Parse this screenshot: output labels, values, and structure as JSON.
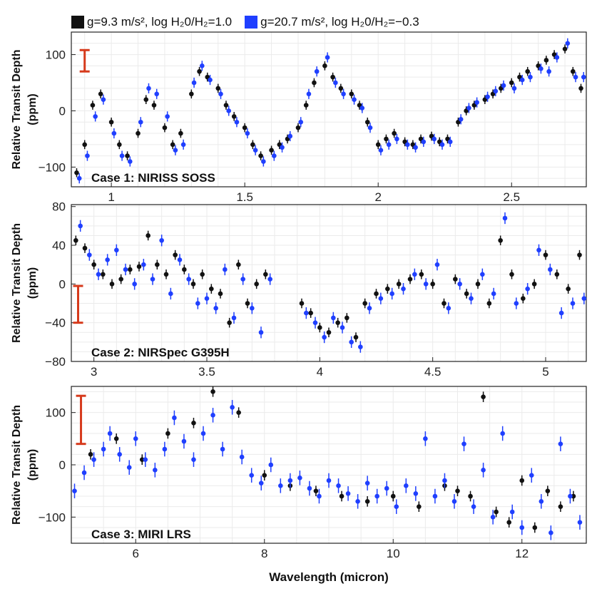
{
  "legend": {
    "items": [
      {
        "label": "g=9.3 m/s², log H₂0/H₂=1.0",
        "color": "#111111"
      },
      {
        "label": "g=20.7 m/s², log H₂0/H₂=−0.3",
        "color": "#1f3fff"
      }
    ]
  },
  "xlabel": "Wavelength (micron)",
  "chart_data": [
    {
      "type": "scatter",
      "title": "Case 1: NIRISS SOSS",
      "ylabel": "Relative Transit Depth (ppm)",
      "xlim": [
        0.85,
        2.78
      ],
      "ylim": [
        -135,
        140
      ],
      "xticks": [
        1,
        1.5,
        2,
        2.5
      ],
      "yticks": [
        -100,
        0,
        100
      ],
      "grid": true,
      "error_bar_reference": {
        "x": 0.9,
        "y_low": 70,
        "y_high": 108
      },
      "series": [
        {
          "name": "g=9.3 m/s², log H₂0/H₂=1.0",
          "color": "#111111",
          "x": [
            0.87,
            0.9,
            0.93,
            0.96,
            1.0,
            1.03,
            1.06,
            1.1,
            1.13,
            1.16,
            1.2,
            1.23,
            1.26,
            1.3,
            1.33,
            1.36,
            1.4,
            1.43,
            1.46,
            1.5,
            1.53,
            1.56,
            1.6,
            1.63,
            1.66,
            1.7,
            1.73,
            1.76,
            1.8,
            1.83,
            1.86,
            1.9,
            1.93,
            1.96,
            2.0,
            2.03,
            2.06,
            2.1,
            2.13,
            2.16,
            2.2,
            2.23,
            2.26,
            2.3,
            2.33,
            2.36,
            2.4,
            2.43,
            2.46,
            2.5,
            2.53,
            2.56,
            2.6,
            2.63,
            2.66,
            2.7,
            2.73,
            2.76
          ],
          "y": [
            -110,
            -60,
            10,
            30,
            -20,
            -60,
            -80,
            -40,
            20,
            10,
            -30,
            -60,
            -40,
            30,
            70,
            60,
            40,
            10,
            -10,
            -30,
            -60,
            -80,
            -70,
            -60,
            -50,
            -30,
            10,
            50,
            80,
            60,
            40,
            30,
            10,
            -20,
            -60,
            -50,
            -40,
            -55,
            -60,
            -50,
            -45,
            -55,
            -50,
            -20,
            0,
            10,
            20,
            30,
            40,
            50,
            60,
            70,
            80,
            90,
            100,
            110,
            70,
            40
          ],
          "error": 8
        },
        {
          "name": "g=20.7 m/s², log H₂0/H₂=−0.3",
          "color": "#1f3fff",
          "x": [
            0.88,
            0.91,
            0.94,
            0.97,
            1.01,
            1.04,
            1.07,
            1.11,
            1.14,
            1.17,
            1.21,
            1.24,
            1.27,
            1.31,
            1.34,
            1.37,
            1.41,
            1.44,
            1.47,
            1.51,
            1.54,
            1.57,
            1.61,
            1.64,
            1.67,
            1.71,
            1.74,
            1.77,
            1.81,
            1.84,
            1.87,
            1.91,
            1.94,
            1.97,
            2.01,
            2.04,
            2.07,
            2.11,
            2.14,
            2.17,
            2.21,
            2.24,
            2.27,
            2.31,
            2.34,
            2.37,
            2.41,
            2.44,
            2.47,
            2.51,
            2.54,
            2.57,
            2.61,
            2.64,
            2.67,
            2.71,
            2.74,
            2.77
          ],
          "y": [
            -120,
            -80,
            -10,
            20,
            -40,
            -80,
            -90,
            -20,
            40,
            30,
            -10,
            -70,
            -60,
            50,
            80,
            55,
            30,
            0,
            -20,
            -40,
            -70,
            -90,
            -80,
            -65,
            -45,
            -20,
            30,
            70,
            95,
            50,
            30,
            20,
            5,
            -30,
            -70,
            -60,
            -50,
            -60,
            -65,
            -55,
            -50,
            -60,
            -55,
            -15,
            5,
            15,
            25,
            35,
            45,
            40,
            55,
            60,
            75,
            70,
            95,
            120,
            60,
            60
          ],
          "error": 9
        }
      ]
    },
    {
      "type": "scatter",
      "title": "Case 2: NIRSpec G395H",
      "ylabel": "Relative Transit Depth (ppm)",
      "xlim": [
        2.9,
        5.18
      ],
      "ylim": [
        -80,
        82
      ],
      "xticks": [
        3,
        3.5,
        4,
        4.5,
        5
      ],
      "yticks": [
        -80,
        -40,
        0,
        40,
        80
      ],
      "grid": true,
      "error_bar_reference": {
        "x": 2.93,
        "y_low": -40,
        "y_high": -2
      },
      "series": [
        {
          "name": "g=9.3 m/s², log H₂0/H₂=1.0",
          "color": "#111111",
          "x": [
            2.92,
            2.96,
            3.0,
            3.04,
            3.08,
            3.12,
            3.16,
            3.2,
            3.24,
            3.28,
            3.32,
            3.36,
            3.4,
            3.44,
            3.48,
            3.52,
            3.56,
            3.6,
            3.64,
            3.68,
            3.72,
            3.76,
            3.92,
            3.96,
            4.0,
            4.04,
            4.08,
            4.12,
            4.16,
            4.2,
            4.25,
            4.3,
            4.35,
            4.4,
            4.45,
            4.5,
            4.55,
            4.6,
            4.65,
            4.7,
            4.75,
            4.8,
            4.85,
            4.9,
            4.95,
            5.0,
            5.05,
            5.1,
            5.15
          ],
          "y": [
            45,
            37,
            20,
            10,
            0,
            5,
            15,
            18,
            50,
            20,
            10,
            30,
            15,
            0,
            10,
            -5,
            -10,
            -40,
            20,
            -20,
            0,
            10,
            -20,
            -30,
            -45,
            -50,
            -40,
            -35,
            -55,
            -20,
            -10,
            -5,
            0,
            5,
            10,
            0,
            -20,
            5,
            -10,
            0,
            -20,
            45,
            10,
            -15,
            0,
            30,
            10,
            -5,
            30
          ],
          "error": 5
        },
        {
          "name": "g=20.7 m/s², log H₂0/H₂=−0.3",
          "color": "#1f3fff",
          "x": [
            2.94,
            2.98,
            3.02,
            3.06,
            3.1,
            3.14,
            3.18,
            3.22,
            3.26,
            3.3,
            3.34,
            3.38,
            3.42,
            3.46,
            3.5,
            3.54,
            3.58,
            3.62,
            3.66,
            3.7,
            3.74,
            3.78,
            3.94,
            3.98,
            4.02,
            4.06,
            4.1,
            4.14,
            4.18,
            4.22,
            4.27,
            4.32,
            4.37,
            4.42,
            4.47,
            4.52,
            4.57,
            4.62,
            4.67,
            4.72,
            4.77,
            4.82,
            4.87,
            4.92,
            4.97,
            5.02,
            5.07,
            5.12,
            5.17
          ],
          "y": [
            60,
            30,
            10,
            25,
            35,
            15,
            0,
            20,
            5,
            45,
            -10,
            25,
            5,
            -20,
            -15,
            -25,
            15,
            -35,
            5,
            -25,
            -50,
            5,
            -30,
            -40,
            -55,
            -35,
            -45,
            -60,
            -65,
            -25,
            -15,
            -10,
            -5,
            10,
            0,
            20,
            -25,
            0,
            -15,
            10,
            -10,
            68,
            -20,
            -5,
            35,
            15,
            -30,
            -20,
            -15
          ],
          "error": 6
        }
      ]
    },
    {
      "type": "scatter",
      "title": "Case 3: MIRI LRS",
      "ylabel": "Relative Transit Depth (ppm)",
      "xlim": [
        5.0,
        13.0
      ],
      "ylim": [
        -150,
        150
      ],
      "xticks": [
        6,
        8,
        10,
        12
      ],
      "yticks": [
        -100,
        0,
        100
      ],
      "grid": true,
      "error_bar_reference": {
        "x": 5.15,
        "y_low": 40,
        "y_high": 132
      },
      "series": [
        {
          "name": "g=9.3 m/s², log H₂0/H₂=1.0",
          "color": "#111111",
          "x": [
            5.3,
            5.7,
            6.1,
            6.5,
            6.9,
            7.2,
            7.6,
            8.0,
            8.4,
            8.8,
            9.2,
            9.6,
            10.0,
            10.4,
            10.8,
            11.0,
            11.2,
            11.4,
            11.6,
            11.8,
            12.0,
            12.2,
            12.4,
            12.6,
            12.8
          ],
          "y": [
            20,
            50,
            10,
            60,
            80,
            140,
            100,
            -20,
            -40,
            -50,
            -60,
            -70,
            -60,
            -80,
            -40,
            -50,
            -60,
            130,
            -90,
            -110,
            -30,
            -120,
            -50,
            -80,
            -60
          ],
          "error": 10
        },
        {
          "name": "g=20.7 m/s², log H₂0/H₂=−0.3",
          "color": "#1f3fff",
          "x": [
            5.05,
            5.2,
            5.35,
            5.5,
            5.6,
            5.75,
            5.9,
            6.0,
            6.15,
            6.3,
            6.45,
            6.6,
            6.75,
            6.9,
            7.05,
            7.2,
            7.35,
            7.5,
            7.65,
            7.8,
            7.95,
            8.1,
            8.25,
            8.4,
            8.55,
            8.7,
            8.85,
            9.0,
            9.15,
            9.3,
            9.45,
            9.6,
            9.75,
            9.9,
            10.05,
            10.2,
            10.35,
            10.5,
            10.65,
            10.8,
            10.95,
            11.1,
            11.25,
            11.4,
            11.55,
            11.7,
            11.85,
            12.0,
            12.15,
            12.3,
            12.45,
            12.6,
            12.75,
            12.9
          ],
          "y": [
            -50,
            -15,
            10,
            30,
            60,
            20,
            -5,
            50,
            10,
            -10,
            30,
            90,
            45,
            10,
            60,
            95,
            30,
            110,
            15,
            -20,
            -35,
            0,
            -40,
            -30,
            -25,
            -45,
            -60,
            -30,
            -40,
            -55,
            -70,
            -35,
            -60,
            -45,
            -80,
            -40,
            -55,
            50,
            -60,
            -30,
            -70,
            40,
            -80,
            -10,
            -100,
            60,
            -90,
            -120,
            -20,
            -70,
            -130,
            40,
            -60,
            -110
          ],
          "error": 14
        }
      ]
    }
  ]
}
